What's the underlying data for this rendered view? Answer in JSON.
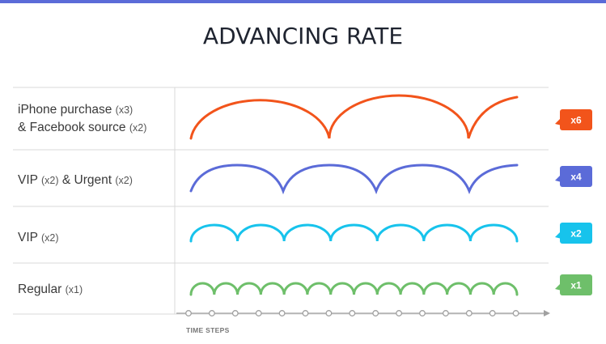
{
  "title": "ADVANCING RATE",
  "axis_label": "TIME STEPS",
  "colors": {
    "top_bar": "#5b6bd8",
    "grid": "#d9d9d9",
    "axis": "#a0a0a0",
    "row1": "#f2541b",
    "row2": "#5b6bd8",
    "row3": "#17c3ec",
    "row4": "#6ebf6a"
  },
  "rows": [
    {
      "label_line1": "iPhone purchase",
      "mult1": "(x3)",
      "label_line2": "& Facebook source",
      "mult2": "(x2)",
      "badge": "x6"
    },
    {
      "label": "VIP",
      "mult1": "(x2)",
      "label_mid": "& Urgent",
      "mult2": "(x2)",
      "badge": "x4"
    },
    {
      "label": "VIP",
      "mult1": "(x2)",
      "badge": "x2"
    },
    {
      "label": "Regular",
      "mult1": "(x1)",
      "badge": "x1"
    }
  ],
  "time_steps": 15
}
